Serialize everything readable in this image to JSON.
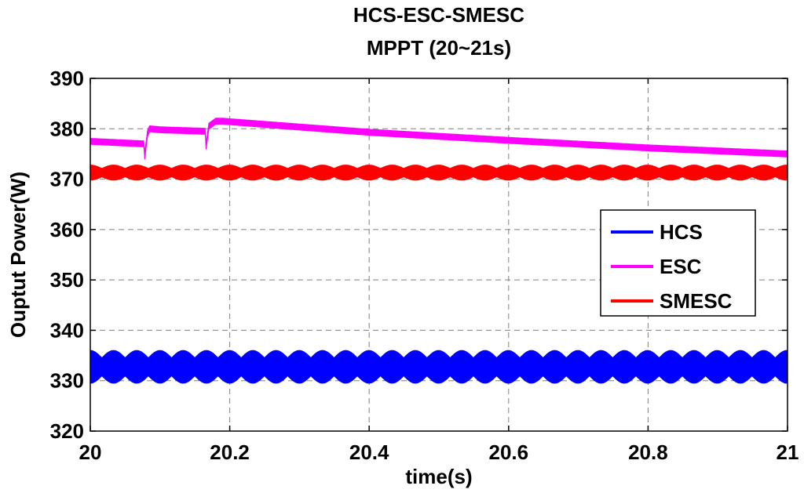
{
  "chart_data": {
    "type": "line",
    "title": "HCS-ESC-SMESC",
    "subtitle": "MPPT (20~21s)",
    "xlabel": "time(s)",
    "ylabel": "Ouptut Power(W)",
    "xlim": [
      20,
      21
    ],
    "ylim": [
      320,
      390
    ],
    "xticks": [
      "20",
      "20.2",
      "20.4",
      "20.6",
      "20.8",
      "21"
    ],
    "yticks": [
      "320",
      "330",
      "340",
      "350",
      "360",
      "370",
      "380",
      "390"
    ],
    "grid": true,
    "legend_position": "right",
    "series": [
      {
        "name": "HCS",
        "color": "#0000ff",
        "x": [
          20,
          20.2,
          20.4,
          20.6,
          20.8,
          21
        ],
        "values": [
          333,
          333,
          333,
          333,
          333,
          333
        ],
        "band_low": 329.5,
        "band_high": 336,
        "ripple_period": 0.0333
      },
      {
        "name": "ESC",
        "color": "#ff00ff",
        "x": [
          20,
          20.077,
          20.078,
          20.082,
          20.085,
          20.1,
          20.165,
          20.166,
          20.17,
          20.18,
          20.19,
          20.4,
          20.6,
          20.8,
          21
        ],
        "values": [
          377.5,
          377,
          374.5,
          379,
          380,
          379.8,
          379.5,
          376.5,
          380.5,
          381.5,
          381.5,
          379.3,
          377.7,
          376.2,
          375
        ],
        "band_half": 0.6
      },
      {
        "name": "SMESC",
        "color": "#ff0000",
        "x": [
          20,
          20.2,
          20.4,
          20.6,
          20.8,
          21
        ],
        "values": [
          371.3,
          371.3,
          371.3,
          371.3,
          371.3,
          371.3
        ],
        "band_low": 369.8,
        "band_high": 372.8,
        "ripple_period": 0.0333
      }
    ]
  }
}
